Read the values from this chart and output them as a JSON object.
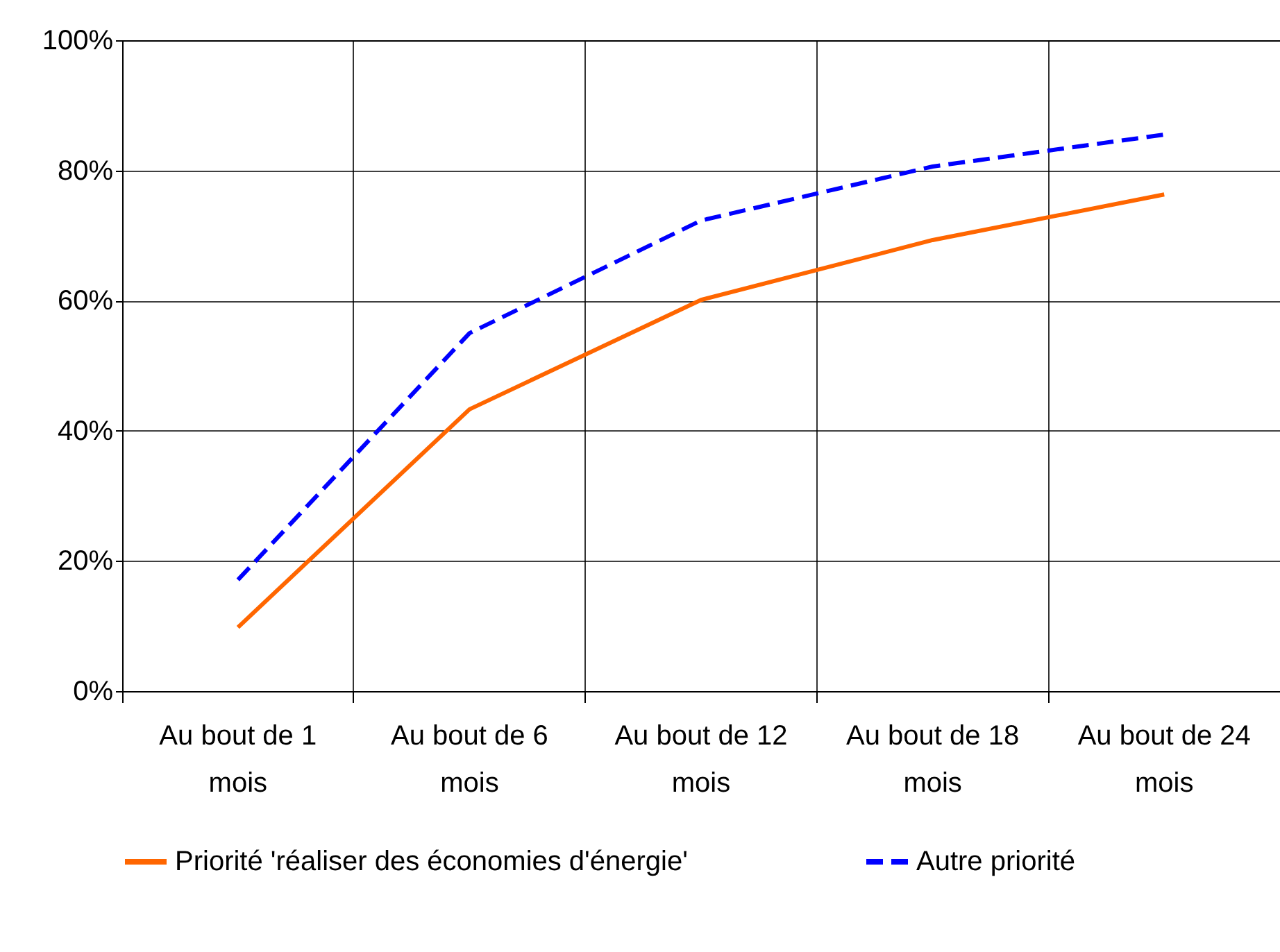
{
  "chart_data": {
    "type": "line",
    "categories": [
      "Au bout de 1 mois",
      "Au bout de 6 mois",
      "Au bout de 12 mois",
      "Au bout de 18 mois",
      "Au bout de 24 mois"
    ],
    "series": [
      {
        "name": "Priorité 'réaliser des économies d'énergie'",
        "color": "#ff6600",
        "line_style": "solid",
        "values": [
          9.8,
          43.3,
          60.1,
          69.3,
          76.3
        ]
      },
      {
        "name": "Autre priorité",
        "color": "#0000ff",
        "line_style": "dashed",
        "values": [
          17.1,
          55.0,
          72.3,
          80.6,
          85.5
        ]
      }
    ],
    "ylim": [
      0,
      100
    ],
    "yticks": [
      {
        "value": 0,
        "label": "0%"
      },
      {
        "value": 20,
        "label": "20%"
      },
      {
        "value": 40,
        "label": "40%"
      },
      {
        "value": 60,
        "label": "60%"
      },
      {
        "value": 80,
        "label": "80%"
      },
      {
        "value": 100,
        "label": "100%"
      }
    ],
    "grid": true,
    "legend": "bottom",
    "marker": "none"
  }
}
